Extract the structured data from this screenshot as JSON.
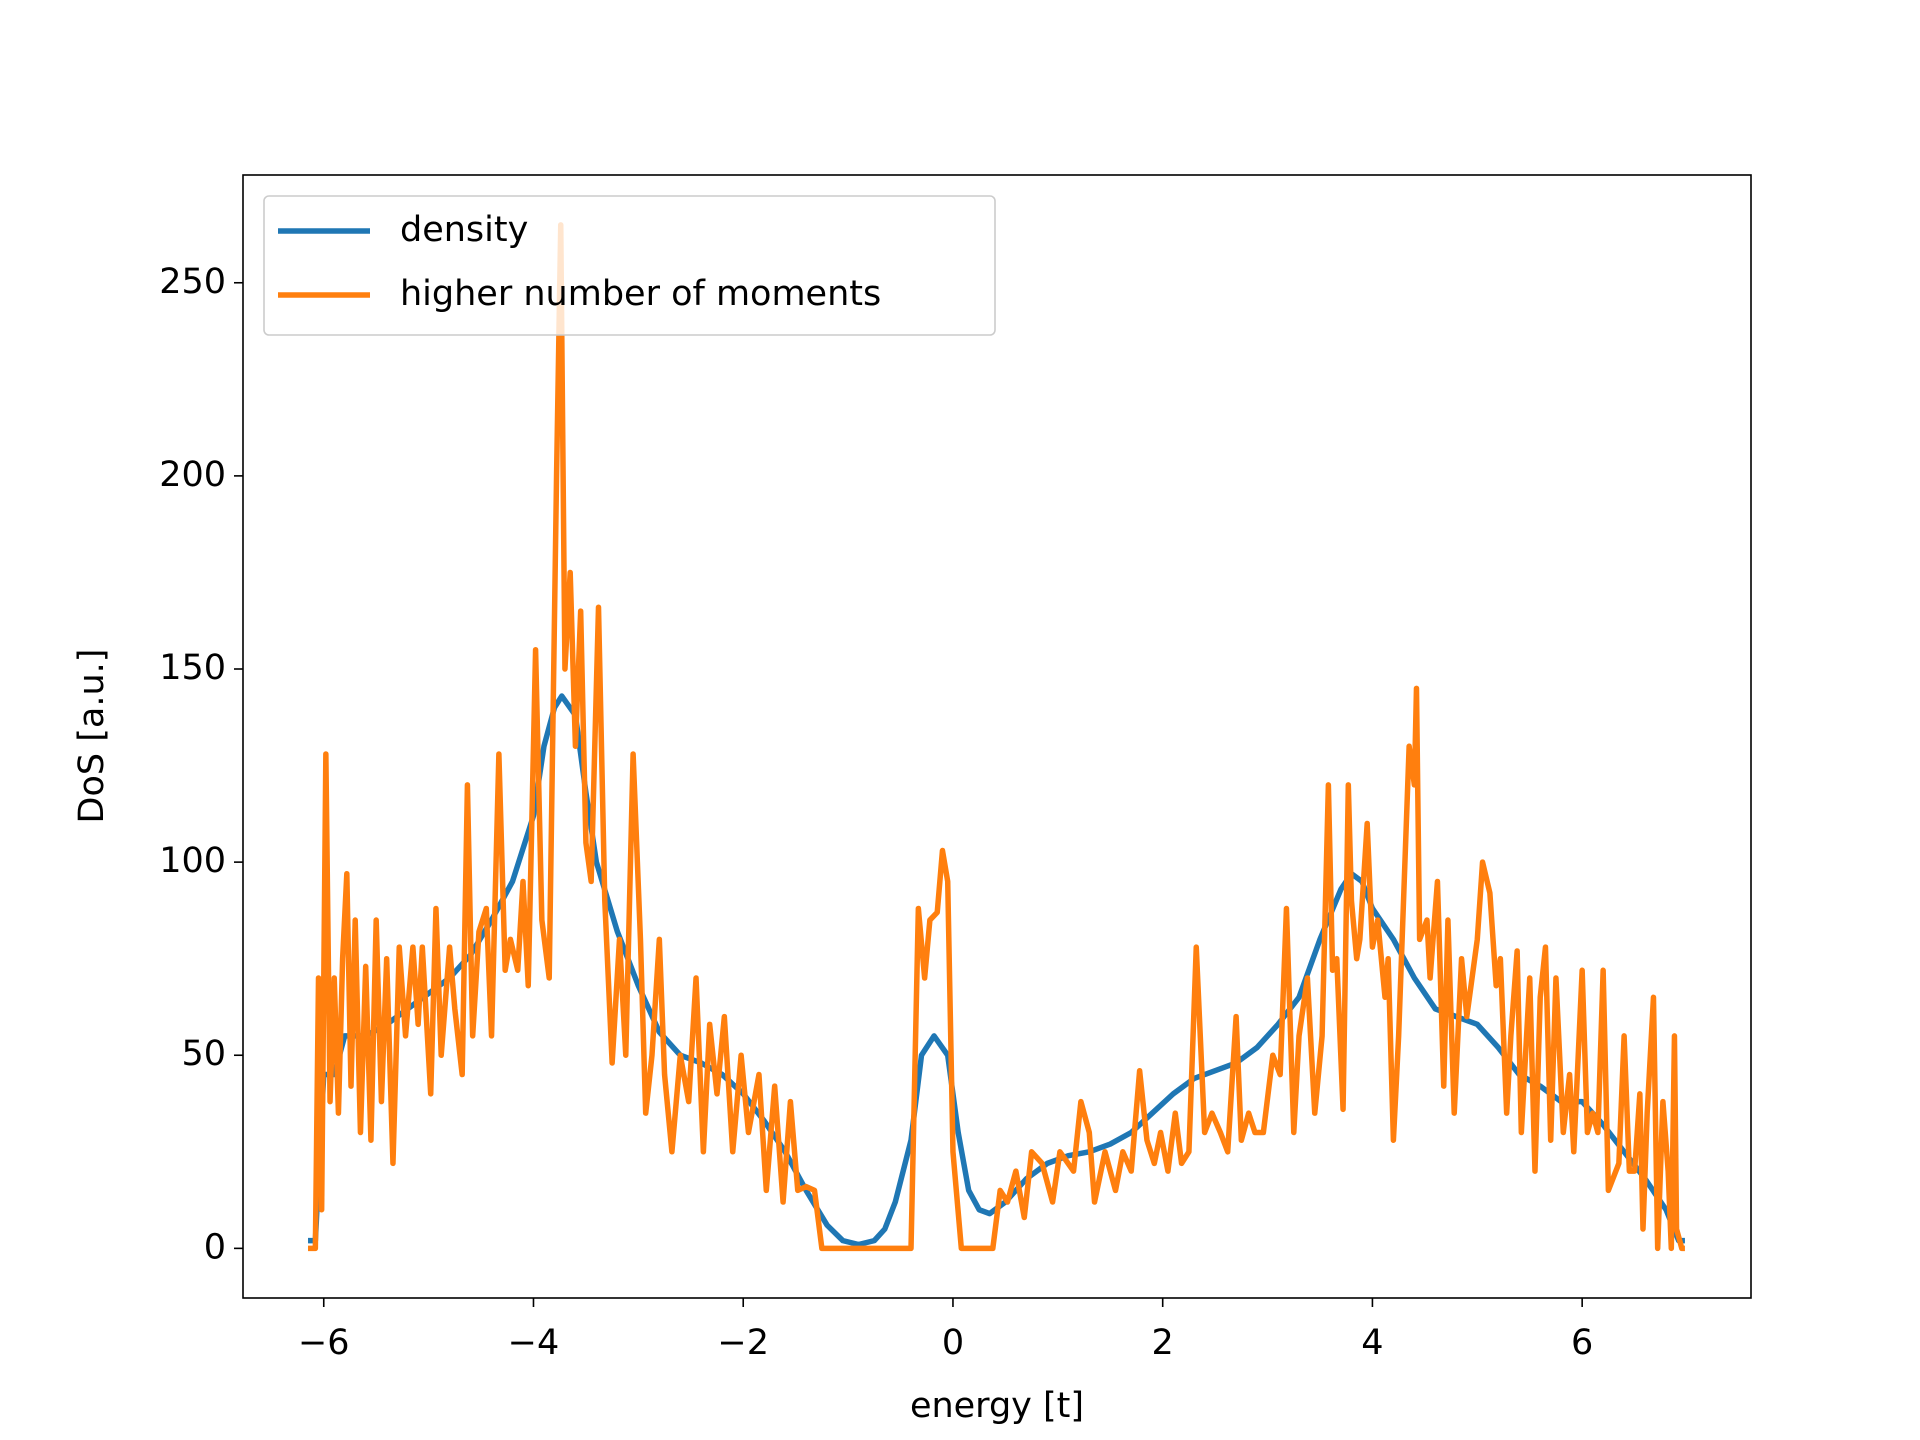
{
  "chart_data": {
    "type": "line",
    "xlabel": "energy [t]",
    "ylabel": "DoS [a.u.]",
    "xlim": [
      -6.77,
      7.61
    ],
    "ylim": [
      -12.85,
      277.9
    ],
    "xticks": [
      {
        "value": -6,
        "label": "−6"
      },
      {
        "value": -4,
        "label": "−4"
      },
      {
        "value": -2,
        "label": "−2"
      },
      0,
      2,
      4,
      6
    ],
    "yticks": [
      0,
      50,
      100,
      150,
      200,
      250
    ],
    "grid": false,
    "legend": "upper left",
    "series": [
      {
        "name": "density",
        "color": "#1f77b4",
        "x": [
          -6.15,
          -6.08,
          -6.0,
          -5.9,
          -5.8,
          -5.6,
          -5.4,
          -5.2,
          -5.0,
          -4.8,
          -4.6,
          -4.4,
          -4.2,
          -4.0,
          -3.9,
          -3.8,
          -3.73,
          -3.6,
          -3.5,
          -3.4,
          -3.2,
          -3.0,
          -2.8,
          -2.6,
          -2.4,
          -2.2,
          -2.0,
          -1.8,
          -1.6,
          -1.4,
          -1.2,
          -1.05,
          -0.9,
          -0.75,
          -0.65,
          -0.55,
          -0.4,
          -0.3,
          -0.18,
          -0.05,
          0.05,
          0.15,
          0.25,
          0.35,
          0.5,
          0.7,
          0.9,
          1.1,
          1.3,
          1.5,
          1.7,
          1.9,
          2.1,
          2.3,
          2.5,
          2.7,
          2.9,
          3.1,
          3.3,
          3.5,
          3.7,
          3.8,
          3.9,
          4.0,
          4.2,
          4.4,
          4.6,
          4.8,
          5.0,
          5.2,
          5.4,
          5.6,
          5.8,
          6.0,
          6.2,
          6.4,
          6.6,
          6.8,
          6.92,
          6.98
        ],
        "values": [
          2,
          2,
          45,
          45,
          55,
          55,
          58,
          62,
          66,
          70,
          76,
          85,
          95,
          112,
          130,
          140,
          143,
          138,
          118,
          100,
          82,
          68,
          56,
          50,
          48,
          45,
          40,
          33,
          25,
          15,
          6,
          2,
          1,
          2,
          5,
          12,
          28,
          50,
          55,
          50,
          30,
          15,
          10,
          9,
          12,
          18,
          22,
          24,
          25,
          27,
          30,
          35,
          40,
          44,
          46,
          48,
          52,
          58,
          65,
          80,
          93,
          97,
          95,
          88,
          80,
          70,
          62,
          60,
          58,
          52,
          45,
          42,
          38,
          38,
          32,
          25,
          18,
          10,
          2,
          2
        ]
      },
      {
        "name": "higher number of moments",
        "color": "#ff7f0e",
        "x": [
          -6.15,
          -6.08,
          -6.05,
          -6.02,
          -5.98,
          -5.94,
          -5.9,
          -5.86,
          -5.82,
          -5.78,
          -5.74,
          -5.7,
          -5.65,
          -5.6,
          -5.55,
          -5.5,
          -5.45,
          -5.4,
          -5.34,
          -5.28,
          -5.22,
          -5.15,
          -5.1,
          -5.06,
          -4.98,
          -4.93,
          -4.88,
          -4.8,
          -4.75,
          -4.68,
          -4.63,
          -4.58,
          -4.52,
          -4.45,
          -4.4,
          -4.33,
          -4.27,
          -4.22,
          -4.15,
          -4.1,
          -4.05,
          -3.98,
          -3.92,
          -3.85,
          -3.78,
          -3.74,
          -3.7,
          -3.65,
          -3.6,
          -3.55,
          -3.5,
          -3.45,
          -3.38,
          -3.32,
          -3.25,
          -3.18,
          -3.12,
          -3.05,
          -2.98,
          -2.93,
          -2.87,
          -2.8,
          -2.75,
          -2.68,
          -2.6,
          -2.52,
          -2.45,
          -2.38,
          -2.32,
          -2.25,
          -2.18,
          -2.1,
          -2.02,
          -1.95,
          -1.85,
          -1.78,
          -1.7,
          -1.62,
          -1.55,
          -1.48,
          -1.4,
          -1.32,
          -1.25,
          -0.4,
          -0.33,
          -0.27,
          -0.22,
          -0.15,
          -0.1,
          -0.05,
          0.0,
          0.08,
          0.38,
          0.45,
          0.52,
          0.6,
          0.68,
          0.75,
          0.85,
          0.95,
          1.02,
          1.15,
          1.22,
          1.3,
          1.35,
          1.45,
          1.55,
          1.62,
          1.7,
          1.78,
          1.85,
          1.92,
          1.98,
          2.05,
          2.12,
          2.18,
          2.25,
          2.32,
          2.4,
          2.47,
          2.55,
          2.62,
          2.7,
          2.75,
          2.82,
          2.88,
          2.96,
          3.05,
          3.12,
          3.18,
          3.25,
          3.3,
          3.38,
          3.45,
          3.52,
          3.58,
          3.62,
          3.66,
          3.72,
          3.77,
          3.8,
          3.85,
          3.88,
          3.95,
          4.0,
          4.05,
          4.12,
          4.15,
          4.2,
          4.25,
          4.35,
          4.4,
          4.42,
          4.45,
          4.52,
          4.55,
          4.62,
          4.68,
          4.72,
          4.78,
          4.85,
          4.9,
          4.95,
          5.0,
          5.05,
          5.12,
          5.18,
          5.22,
          5.28,
          5.32,
          5.38,
          5.42,
          5.5,
          5.55,
          5.6,
          5.65,
          5.7,
          5.75,
          5.82,
          5.88,
          5.92,
          6.0,
          6.05,
          6.1,
          6.15,
          6.2,
          6.25,
          6.35,
          6.4,
          6.45,
          6.5,
          6.55,
          6.58,
          6.62,
          6.68,
          6.72,
          6.77,
          6.82,
          6.85,
          6.88,
          6.9,
          6.95,
          6.98
        ],
        "values": [
          0,
          0,
          70,
          10,
          128,
          38,
          70,
          35,
          75,
          97,
          42,
          85,
          30,
          73,
          28,
          85,
          38,
          75,
          22,
          78,
          55,
          78,
          58,
          78,
          40,
          88,
          50,
          78,
          62,
          45,
          120,
          55,
          82,
          88,
          55,
          128,
          72,
          80,
          72,
          95,
          68,
          155,
          85,
          70,
          200,
          265,
          150,
          175,
          130,
          165,
          105,
          95,
          166,
          90,
          48,
          80,
          50,
          128,
          80,
          35,
          50,
          80,
          45,
          25,
          50,
          38,
          70,
          25,
          58,
          40,
          60,
          25,
          50,
          30,
          45,
          15,
          42,
          12,
          38,
          15,
          16,
          15,
          0,
          0,
          88,
          70,
          85,
          87,
          103,
          95,
          25,
          0,
          0,
          15,
          12,
          20,
          8,
          25,
          22,
          12,
          25,
          20,
          38,
          30,
          12,
          25,
          15,
          25,
          20,
          46,
          28,
          22,
          30,
          20,
          35,
          22,
          25,
          78,
          30,
          35,
          30,
          25,
          60,
          28,
          35,
          30,
          30,
          50,
          45,
          88,
          30,
          55,
          70,
          35,
          55,
          120,
          72,
          75,
          36,
          120,
          90,
          75,
          80,
          110,
          78,
          85,
          65,
          75,
          28,
          55,
          130,
          120,
          145,
          80,
          85,
          70,
          95,
          42,
          85,
          35,
          75,
          60,
          70,
          80,
          100,
          92,
          68,
          75,
          35,
          55,
          77,
          30,
          70,
          20,
          65,
          78,
          28,
          70,
          30,
          45,
          25,
          72,
          30,
          35,
          30,
          72,
          15,
          22,
          55,
          20,
          20,
          40,
          5,
          35,
          65,
          0,
          38,
          20,
          0,
          55,
          5,
          0,
          0
        ]
      }
    ]
  }
}
